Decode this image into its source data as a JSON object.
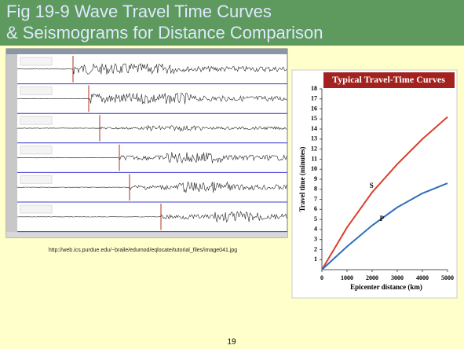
{
  "slide": {
    "title_lines": [
      "Fig 19-9 Wave Travel Time Curves",
      "& Seismograms for Distance Comparison"
    ],
    "caption": "http://web.ics.purdue.edu/~braile/edumod/eqlocate/tutorial_files/image041.jpg",
    "page_number": "19"
  },
  "chart_data": {
    "type": "line",
    "title": "Typical Travel-Time Curves",
    "x_label": "Epicenter distance (km)",
    "y_label": "Travel time (minutes)",
    "x": [
      0,
      1000,
      2000,
      3000,
      4000,
      5000
    ],
    "series": [
      {
        "name": "S",
        "color": "#d8402c",
        "values": [
          0,
          4.2,
          7.7,
          10.5,
          13,
          15.2
        ]
      },
      {
        "name": "P",
        "color": "#2f6fb6",
        "values": [
          0,
          2.3,
          4.4,
          6.2,
          7.6,
          8.6
        ]
      }
    ],
    "xlim": [
      0,
      5000
    ],
    "xticks": [
      0,
      1000,
      2000,
      3000,
      4000,
      5000
    ],
    "ylim": [
      0,
      18
    ],
    "yticks": [
      1,
      2,
      3,
      4,
      5,
      6,
      7,
      8,
      9,
      10,
      11,
      12,
      13,
      14,
      15,
      16,
      17,
      18
    ]
  }
}
